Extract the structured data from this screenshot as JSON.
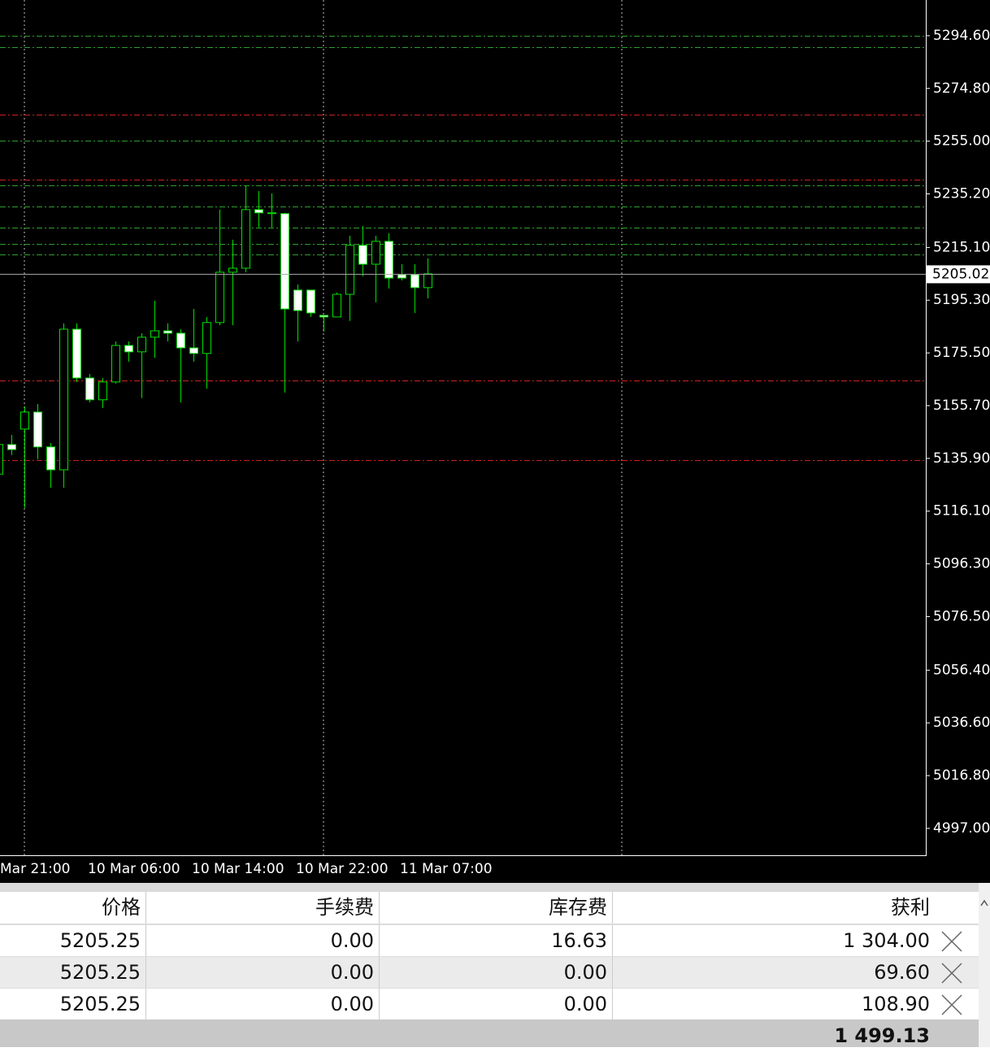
{
  "chart_data": {
    "type": "candlestick",
    "categories": [
      "Mar 21:00",
      null,
      null,
      null,
      null,
      null,
      null,
      "10 Mar 06:00",
      null,
      null,
      null,
      null,
      null,
      null,
      null,
      "10 Mar 14:00",
      null,
      null,
      null,
      null,
      null,
      null,
      null,
      "10 Mar 22:00",
      null,
      null,
      null,
      null,
      null,
      null,
      null,
      "11 Mar 07:00",
      null,
      null
    ],
    "open": [
      5130.0,
      5141.1,
      5146.9,
      5153.3,
      5140.2,
      5131.6,
      5184.4,
      5166.1,
      5157.9,
      5164.6,
      5178.3,
      5175.9,
      5181.4,
      5183.8,
      5182.9,
      5177.4,
      5175.3,
      5186.9,
      5205.8,
      5207.3,
      5229.3,
      5228.1,
      5227.8,
      5199.1,
      5199.1,
      5189.6,
      5189.0,
      5197.5,
      5215.9,
      5208.8,
      5217.4,
      5204.9,
      5204.9,
      5200.0
    ],
    "high": [
      5141.7,
      5144.7,
      5155.4,
      5156.3,
      5141.7,
      5186.6,
      5186.6,
      5167.6,
      5166.1,
      5179.8,
      5179.8,
      5182.9,
      5195.1,
      5186.6,
      5184.4,
      5192.0,
      5189.0,
      5229.3,
      5218.0,
      5238.4,
      5236.3,
      5235.4,
      5228.1,
      5201.2,
      5199.1,
      5189.6,
      5198.2,
      5219.5,
      5223.2,
      5219.5,
      5220.4,
      5208.8,
      5208.8,
      5211.0
    ],
    "low": [
      5124.9,
      5137.1,
      5117.3,
      5135.6,
      5124.9,
      5124.9,
      5164.6,
      5156.9,
      5154.8,
      5164.0,
      5172.2,
      5158.5,
      5173.7,
      5179.8,
      5156.9,
      5172.2,
      5162.1,
      5185.9,
      5185.9,
      5205.8,
      5222.6,
      5222.6,
      5160.6,
      5179.8,
      5189.0,
      5183.5,
      5189.0,
      5187.5,
      5204.3,
      5194.5,
      5199.7,
      5202.7,
      5190.5,
      5196.0
    ],
    "close": [
      5141.1,
      5139.2,
      5153.3,
      5140.2,
      5131.6,
      5184.4,
      5166.1,
      5157.9,
      5164.6,
      5178.3,
      5175.9,
      5181.4,
      5183.8,
      5182.9,
      5177.4,
      5175.3,
      5186.9,
      5205.8,
      5207.3,
      5229.3,
      5228.1,
      5227.8,
      5192.0,
      5191.4,
      5190.5,
      5189.0,
      5197.5,
      5215.9,
      5208.8,
      5217.4,
      5203.6,
      5203.6,
      5200.0,
      5205.2
    ],
    "ylim": [
      4986.9,
      5308.0
    ],
    "yticks": [
      {
        "value": 5294.6,
        "label": "5294.60"
      },
      {
        "value": 5274.8,
        "label": "5274.80"
      },
      {
        "value": 5255.0,
        "label": "5255.00"
      },
      {
        "value": 5235.2,
        "label": "5235.20"
      },
      {
        "value": 5215.1,
        "label": "5215.10"
      },
      {
        "value": 5195.3,
        "label": "5195.30"
      },
      {
        "value": 5175.5,
        "label": "5175.50"
      },
      {
        "value": 5155.7,
        "label": "5155.70"
      },
      {
        "value": 5135.9,
        "label": "5135.90"
      },
      {
        "value": 5116.1,
        "label": "5116.10"
      },
      {
        "value": 5096.3,
        "label": "5096.30"
      },
      {
        "value": 5076.5,
        "label": "5076.50"
      },
      {
        "value": 5056.4,
        "label": "5056.40"
      },
      {
        "value": 5036.6,
        "label": "5036.60"
      },
      {
        "value": 5016.8,
        "label": "5016.80"
      },
      {
        "value": 4997.0,
        "label": "4997.00"
      }
    ],
    "levels": [
      {
        "value": 5294.6,
        "color": "#2e9e2e"
      },
      {
        "value": 5290.3,
        "color": "#2e9e2e"
      },
      {
        "value": 5265.0,
        "color": "#d02020"
      },
      {
        "value": 5255.2,
        "color": "#2e9e2e"
      },
      {
        "value": 5240.6,
        "color": "#d02020"
      },
      {
        "value": 5238.4,
        "color": "#2e9e2e"
      },
      {
        "value": 5230.5,
        "color": "#2e9e2e"
      },
      {
        "value": 5222.6,
        "color": "#2e9e2e"
      },
      {
        "value": 5216.5,
        "color": "#2e9e2e"
      },
      {
        "value": 5212.5,
        "color": "#2e9e2e"
      },
      {
        "value": 5165.2,
        "color": "#d02020"
      },
      {
        "value": 5135.3,
        "color": "#d02020"
      }
    ],
    "current_price": {
      "value": 5205.02,
      "label": "5205.02"
    },
    "color": "#00e000"
  },
  "table": {
    "headers": [
      "价格",
      "手续费",
      "库存费",
      "获利"
    ],
    "rows": [
      [
        "5205.25",
        "0.00",
        "16.63",
        "1 304.00"
      ],
      [
        "5205.25",
        "0.00",
        "0.00",
        "69.60"
      ],
      [
        "5205.25",
        "0.00",
        "0.00",
        "108.90"
      ]
    ],
    "total": "1 499.13"
  }
}
